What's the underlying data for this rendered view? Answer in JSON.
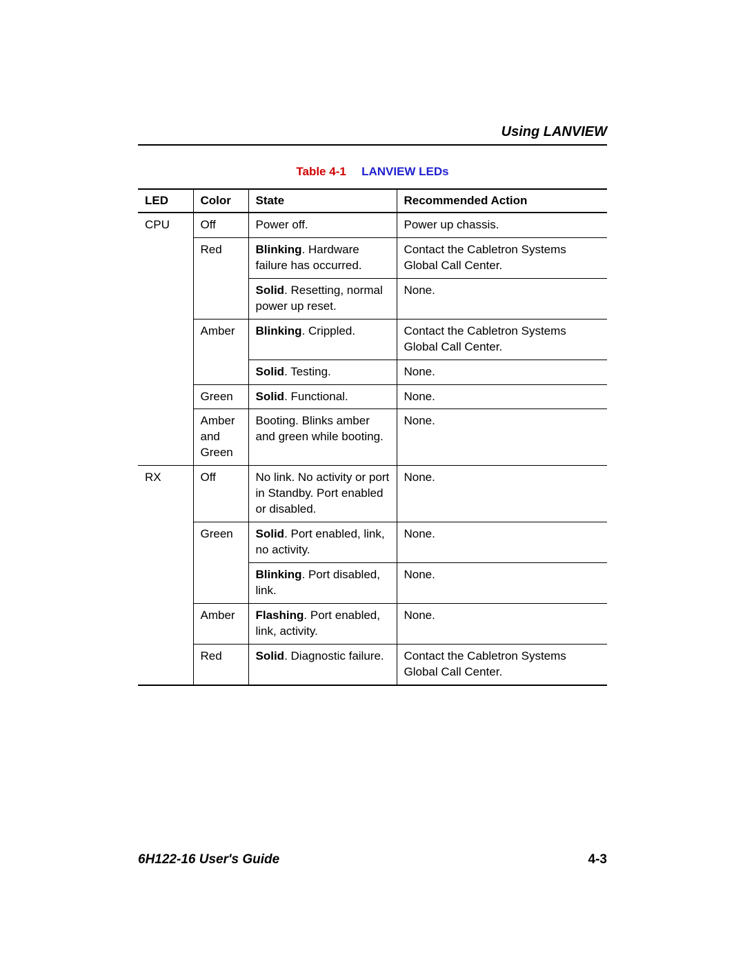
{
  "header": {
    "title": "Using LANVIEW"
  },
  "caption": {
    "label": "Table 4-1",
    "title": "LANVIEW LEDs"
  },
  "table": {
    "columns": [
      "LED",
      "Color",
      "State",
      "Recommended Action"
    ],
    "groups": [
      {
        "led": "CPU",
        "colors": [
          {
            "color": "Off",
            "states": [
              {
                "bold": "",
                "text": "Power off.",
                "action": "Power up chassis."
              }
            ]
          },
          {
            "color": "Red",
            "states": [
              {
                "bold": "Blinking",
                "text": ". Hardware failure has occurred.",
                "action": "Contact the Cabletron Systems Global Call Center."
              },
              {
                "bold": "Solid",
                "text": ". Resetting, normal power up reset.",
                "action": "None."
              }
            ]
          },
          {
            "color": "Amber",
            "states": [
              {
                "bold": "Blinking",
                "text": ". Crippled.",
                "action": "Contact the Cabletron Systems Global Call Center."
              },
              {
                "bold": "Solid",
                "text": ". Testing.",
                "action": "None."
              }
            ]
          },
          {
            "color": "Green",
            "states": [
              {
                "bold": "Solid",
                "text": ". Functional.",
                "action": "None."
              }
            ]
          },
          {
            "color": "Amber and Green",
            "states": [
              {
                "bold": "",
                "text": "Booting. Blinks amber and green while booting.",
                "action": "None."
              }
            ]
          }
        ]
      },
      {
        "led": "RX",
        "colors": [
          {
            "color": "Off",
            "states": [
              {
                "bold": "",
                "text": "No link. No activity or port in Standby. Port enabled or disabled.",
                "action": "None."
              }
            ]
          },
          {
            "color": "Green",
            "states": [
              {
                "bold": "Solid",
                "text": ". Port enabled, link, no activity.",
                "action": "None."
              },
              {
                "bold": "Blinking",
                "text": ". Port disabled, link.",
                "action": "None."
              }
            ]
          },
          {
            "color": "Amber",
            "states": [
              {
                "bold": "Flashing",
                "text": ". Port enabled, link, activity.",
                "action": "None."
              }
            ]
          },
          {
            "color": "Red",
            "states": [
              {
                "bold": "Solid",
                "text": ". Diagnostic failure.",
                "action": "Contact the Cabletron Systems Global Call Center."
              }
            ]
          }
        ]
      }
    ]
  },
  "footer": {
    "left": "6H122-16 User's Guide",
    "right": "4-3"
  },
  "colors": {
    "caption_label": "#d00000",
    "caption_title": "#2020d0",
    "text": "#000000",
    "background": "#ffffff"
  },
  "typography": {
    "base_fontsize": 17,
    "header_fontsize": 20,
    "footer_fontsize": 19,
    "caption_fontsize": 17,
    "font_family": "Arial, Helvetica, sans-serif"
  }
}
